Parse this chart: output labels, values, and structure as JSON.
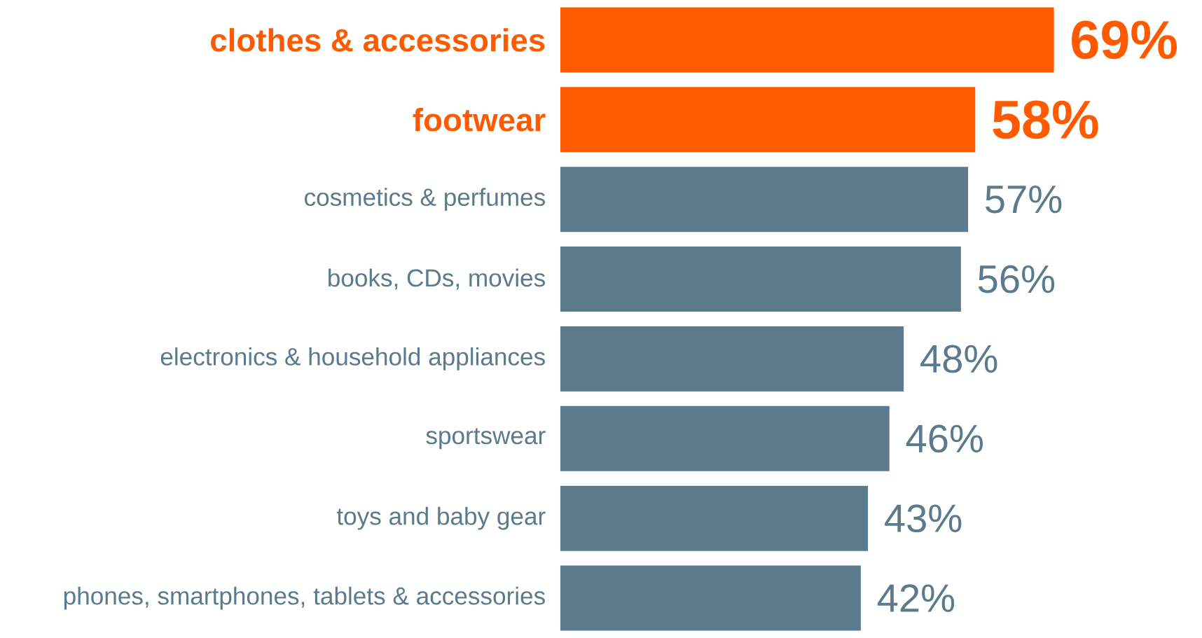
{
  "chart_data": {
    "type": "bar",
    "orientation": "horizontal",
    "categories": [
      "clothes & accessories",
      "footwear",
      "cosmetics & perfumes",
      "books, CDs, movies",
      "electronics & household appliances",
      "sportswear",
      "toys and baby gear",
      "phones, smartphones, tablets & accessories"
    ],
    "values": [
      69,
      58,
      57,
      56,
      48,
      46,
      43,
      42
    ],
    "colors": [
      "#ff5a00",
      "#ff5a00",
      "#5b7a8c",
      "#5b7a8c",
      "#5b7a8c",
      "#5b7a8c",
      "#5b7a8c",
      "#5b7a8c"
    ],
    "data_labels": true,
    "value_labels": [
      "69%",
      "58%",
      "57%",
      "56%",
      "48%",
      "46%",
      "43%",
      "42%"
    ]
  }
}
